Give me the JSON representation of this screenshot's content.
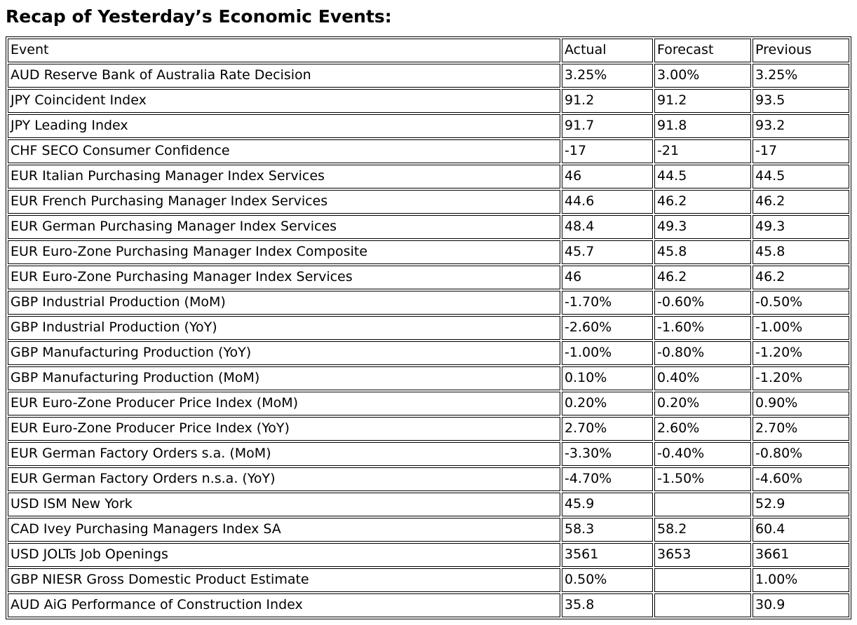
{
  "page": {
    "title": "Recap of Yesterday’s Economic Events:"
  },
  "colors": {
    "text": "#000000",
    "border": "#000000",
    "background": "#ffffff"
  },
  "table": {
    "columns": [
      "Event",
      "Actual",
      "Forecast",
      "Previous"
    ],
    "rows": [
      {
        "event": "AUD Reserve Bank of Australia Rate Decision",
        "actual": "3.25%",
        "forecast": "3.00%",
        "previous": "3.25%"
      },
      {
        "event": "JPY Coincident Index",
        "actual": "91.2",
        "forecast": "91.2",
        "previous": "93.5"
      },
      {
        "event": "JPY Leading Index",
        "actual": "91.7",
        "forecast": "91.8",
        "previous": "93.2"
      },
      {
        "event": "CHF SECO Consumer Confidence",
        "actual": "-17",
        "forecast": "-21",
        "previous": "-17"
      },
      {
        "event": "EUR Italian Purchasing Manager Index Services",
        "actual": "46",
        "forecast": "44.5",
        "previous": "44.5"
      },
      {
        "event": "EUR French Purchasing Manager Index Services",
        "actual": "44.6",
        "forecast": "46.2",
        "previous": "46.2"
      },
      {
        "event": "EUR German Purchasing Manager Index Services",
        "actual": "48.4",
        "forecast": "49.3",
        "previous": "49.3"
      },
      {
        "event": "EUR Euro-Zone Purchasing Manager Index Composite",
        "actual": "45.7",
        "forecast": "45.8",
        "previous": "45.8"
      },
      {
        "event": "EUR Euro-Zone Purchasing Manager Index Services",
        "actual": "46",
        "forecast": "46.2",
        "previous": "46.2"
      },
      {
        "event": "GBP Industrial Production (MoM)",
        "actual": "-1.70%",
        "forecast": "-0.60%",
        "previous": "-0.50%"
      },
      {
        "event": "GBP Industrial Production (YoY)",
        "actual": "-2.60%",
        "forecast": "-1.60%",
        "previous": "-1.00%"
      },
      {
        "event": "GBP Manufacturing Production (YoY)",
        "actual": "-1.00%",
        "forecast": "-0.80%",
        "previous": "-1.20%"
      },
      {
        "event": "GBP Manufacturing Production (MoM)",
        "actual": "0.10%",
        "forecast": "0.40%",
        "previous": "-1.20%"
      },
      {
        "event": "EUR Euro-Zone Producer Price Index (MoM)",
        "actual": "0.20%",
        "forecast": "0.20%",
        "previous": "0.90%"
      },
      {
        "event": "EUR Euro-Zone Producer Price Index (YoY)",
        "actual": "2.70%",
        "forecast": "2.60%",
        "previous": "2.70%"
      },
      {
        "event": "EUR German Factory Orders s.a. (MoM)",
        "actual": "-3.30%",
        "forecast": "-0.40%",
        "previous": "-0.80%"
      },
      {
        "event": "EUR German Factory Orders n.s.a. (YoY)",
        "actual": "-4.70%",
        "forecast": "-1.50%",
        "previous": "-4.60%"
      },
      {
        "event": "USD ISM New York",
        "actual": "45.9",
        "forecast": "",
        "previous": "52.9"
      },
      {
        "event": "CAD Ivey Purchasing Managers Index SA",
        "actual": "58.3",
        "forecast": "58.2",
        "previous": "60.4"
      },
      {
        "event": "USD JOLTs Job Openings",
        "actual": "3561",
        "forecast": "3653",
        "previous": "3661"
      },
      {
        "event": "GBP NIESR Gross Domestic Product Estimate",
        "actual": "0.50%",
        "forecast": "",
        "previous": "1.00%"
      },
      {
        "event": "AUD AiG Performance of Construction Index",
        "actual": "35.8",
        "forecast": "",
        "previous": "30.9"
      }
    ]
  }
}
